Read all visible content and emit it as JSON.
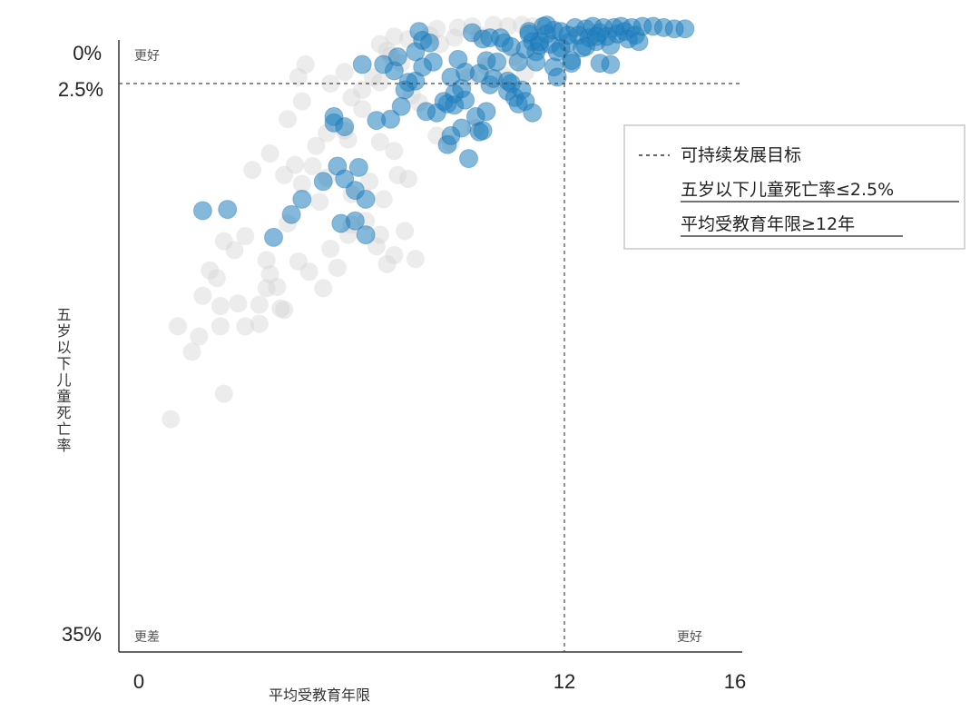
{
  "chart_data": {
    "type": "scatter",
    "title": "",
    "xlabel": "平均受教育年限",
    "ylabel": "五岁以下儿童死亡率",
    "xlim": [
      0,
      16
    ],
    "ylim_label_top": "0%",
    "ylim_label_bottom": "35%",
    "x_ticks": [
      "0",
      "12",
      "16"
    ],
    "y_ticks": [
      "0%",
      "2.5%",
      "35%"
    ],
    "corner_labels": {
      "top_left": "更好",
      "bottom_left": "更差",
      "bottom_right": "更好"
    },
    "legend": {
      "line_label": "可持续发展目标",
      "line_style": "dashed",
      "item1": "五岁以下儿童死亡率≤2.5%",
      "item2": "平均受教育年限≥12年"
    },
    "reference_lines": {
      "x": 12,
      "y_percent": 2.5
    },
    "colors": {
      "highlight": "#1f7fc0",
      "other": "#d4d4d4",
      "axis": "#333333"
    },
    "series": [
      {
        "name": "",
        "color": "#1f7fc0",
        "points": [
          [
            1.8,
            12.5
          ],
          [
            2.5,
            12.4
          ],
          [
            3.8,
            14.6
          ],
          [
            4.3,
            12.8
          ],
          [
            4.6,
            11.6
          ],
          [
            5.2,
            10.2
          ],
          [
            5.6,
            9.0
          ],
          [
            5.8,
            10.0
          ],
          [
            6.1,
            10.9
          ],
          [
            6.2,
            9.1
          ],
          [
            5.7,
            13.5
          ],
          [
            6.1,
            13.3
          ],
          [
            6.4,
            14.4
          ],
          [
            6.4,
            11.6
          ],
          [
            5.5,
            5.1
          ],
          [
            5.5,
            5.6
          ],
          [
            5.8,
            5.9
          ],
          [
            6.3,
            1.0
          ],
          [
            6.7,
            5.4
          ],
          [
            6.9,
            1.0
          ],
          [
            7.1,
            5.3
          ],
          [
            7.2,
            1.5
          ],
          [
            7.4,
            4.3
          ],
          [
            7.8,
            0.0
          ],
          [
            7.8,
            2.3
          ],
          [
            7.3,
            0.4
          ],
          [
            7.6,
            2.4
          ],
          [
            7.5,
            3.0
          ],
          [
            7.9,
            -1.6
          ],
          [
            8.0,
            -0.9
          ],
          [
            8.0,
            1.2
          ],
          [
            8.2,
            -0.7
          ],
          [
            8.3,
            0.8
          ],
          [
            8.4,
            4.8
          ],
          [
            8.1,
            4.7
          ],
          [
            8.8,
            2.0
          ],
          [
            8.6,
            3.9
          ],
          [
            8.7,
            4.1
          ],
          [
            8.7,
            7.3
          ],
          [
            8.9,
            3.3
          ],
          [
            8.9,
            4.2
          ],
          [
            9.2,
            1.6
          ],
          [
            9.1,
            6.0
          ],
          [
            8.8,
            6.6
          ],
          [
            9.2,
            3.8
          ],
          [
            9.0,
            0.6
          ],
          [
            9.1,
            2.9
          ],
          [
            9.7,
            -1.0
          ],
          [
            9.5,
            5.1
          ],
          [
            9.8,
            4.7
          ],
          [
            9.6,
            6.3
          ],
          [
            9.3,
            8.4
          ],
          [
            9.7,
            6.2
          ],
          [
            9.4,
            -1.5
          ],
          [
            9.6,
            1.7
          ],
          [
            9.8,
            0.7
          ],
          [
            9.9,
            -1.1
          ],
          [
            9.9,
            2.6
          ],
          [
            10.0,
            2.1
          ],
          [
            10.1,
            0.8
          ],
          [
            10.2,
            -1.1
          ],
          [
            10.3,
            -0.7
          ],
          [
            10.4,
            2.3
          ],
          [
            10.4,
            3.1
          ],
          [
            10.5,
            2.5
          ],
          [
            10.6,
            3.6
          ],
          [
            10.7,
            4.1
          ],
          [
            10.5,
            -0.4
          ],
          [
            10.7,
            0.8
          ],
          [
            10.8,
            3.0
          ],
          [
            10.9,
            3.9
          ],
          [
            11.0,
            -1.4
          ],
          [
            11.1,
            -0.8
          ],
          [
            11.2,
            0.0
          ],
          [
            11.2,
            0.8
          ],
          [
            11.3,
            -0.5
          ],
          [
            11.4,
            -2.0
          ],
          [
            11.5,
            -1.4
          ],
          [
            11.6,
            -0.6
          ],
          [
            11.7,
            -1.7
          ],
          [
            11.7,
            1.2
          ],
          [
            11.8,
            2.0
          ],
          [
            11.9,
            -1.6
          ],
          [
            12.1,
            -0.7
          ],
          [
            12.2,
            0.7
          ],
          [
            12.3,
            -1.9
          ],
          [
            12.4,
            -1.3
          ],
          [
            12.5,
            -0.3
          ],
          [
            12.6,
            -1.8
          ],
          [
            12.7,
            -1.1
          ],
          [
            12.8,
            -2.0
          ],
          [
            12.9,
            -0.8
          ],
          [
            13.0,
            -1.5
          ],
          [
            13.1,
            -1.9
          ],
          [
            13.2,
            -1.2
          ],
          [
            13.3,
            -0.5
          ],
          [
            13.4,
            -1.9
          ],
          [
            13.5,
            -1.4
          ],
          [
            13.6,
            -2.0
          ],
          [
            13.7,
            -1.6
          ],
          [
            13.8,
            -1.0
          ],
          [
            13.9,
            -1.9
          ],
          [
            14.0,
            -1.3
          ],
          [
            14.1,
            -0.8
          ],
          [
            14.2,
            -2.0
          ],
          [
            14.5,
            -2.0
          ],
          [
            14.8,
            -1.9
          ],
          [
            15.1,
            -1.8
          ],
          [
            15.4,
            -1.8
          ],
          [
            12.2,
            0.9
          ],
          [
            13.3,
            1.0
          ],
          [
            12.9,
            -1.2
          ],
          [
            11.3,
            -0.8
          ],
          [
            11.9,
            -0.3
          ],
          [
            10.9,
            -0.2
          ],
          [
            11.1,
            4.8
          ],
          [
            12.6,
            -0.4
          ],
          [
            12.1,
            -1.3
          ],
          [
            11.5,
            -2.1
          ],
          [
            11.0,
            -1.6
          ],
          [
            13.0,
            0.9
          ],
          [
            11.8,
            0.0
          ]
        ]
      },
      {
        "name": "",
        "color": "#d4d4d4",
        "points": [
          [
            0.9,
            28.9
          ],
          [
            1.1,
            21.6
          ],
          [
            1.5,
            23.6
          ],
          [
            1.7,
            22.4
          ],
          [
            2.3,
            21.6
          ],
          [
            2.4,
            26.9
          ],
          [
            2.3,
            20.0
          ],
          [
            1.8,
            19.2
          ],
          [
            2.0,
            17.2
          ],
          [
            2.2,
            17.8
          ],
          [
            2.8,
            19.8
          ],
          [
            3.0,
            21.6
          ],
          [
            3.4,
            21.4
          ],
          [
            3.6,
            18.6
          ],
          [
            4.1,
            20.3
          ],
          [
            3.9,
            18.5
          ],
          [
            3.4,
            19.9
          ],
          [
            3.7,
            17.5
          ],
          [
            4.0,
            20.2
          ],
          [
            2.4,
            14.9
          ],
          [
            3.0,
            14.5
          ],
          [
            2.7,
            15.6
          ],
          [
            3.6,
            16.4
          ],
          [
            4.2,
            13.5
          ],
          [
            4.5,
            16.5
          ],
          [
            4.8,
            17.3
          ],
          [
            5.6,
            17.0
          ],
          [
            5.4,
            15.5
          ],
          [
            5.9,
            14.4
          ],
          [
            6.4,
            13.3
          ],
          [
            6.0,
            13.6
          ],
          [
            6.8,
            14.4
          ],
          [
            6.7,
            15.3
          ],
          [
            7.0,
            16.7
          ],
          [
            7.2,
            16.0
          ],
          [
            7.5,
            14.1
          ],
          [
            7.8,
            16.3
          ],
          [
            3.2,
            9.3
          ],
          [
            3.7,
            8.0
          ],
          [
            4.1,
            9.7
          ],
          [
            4.6,
            10.4
          ],
          [
            5.1,
            11.8
          ],
          [
            5.3,
            9.9
          ],
          [
            6.0,
            11.2
          ],
          [
            6.5,
            10.2
          ],
          [
            6.9,
            11.6
          ],
          [
            7.3,
            9.7
          ],
          [
            7.6,
            10.0
          ],
          [
            7.2,
            7.8
          ],
          [
            6.8,
            7.1
          ],
          [
            5.9,
            6.9
          ],
          [
            5.3,
            6.4
          ],
          [
            4.4,
            8.9
          ],
          [
            5.0,
            7.4
          ],
          [
            4.9,
            9.0
          ],
          [
            4.2,
            5.3
          ],
          [
            4.6,
            3.9
          ],
          [
            4.5,
            2.0
          ],
          [
            4.7,
            1.0
          ],
          [
            5.4,
            2.5
          ],
          [
            5.8,
            1.6
          ],
          [
            6.0,
            3.6
          ],
          [
            6.3,
            3.0
          ],
          [
            6.6,
            2.0
          ],
          [
            6.8,
            2.4
          ],
          [
            7.1,
            0.3
          ],
          [
            7.4,
            0.9
          ],
          [
            7.0,
            -0.1
          ],
          [
            7.6,
            -1.0
          ],
          [
            8.2,
            -1.3
          ],
          [
            8.5,
            -0.6
          ],
          [
            8.4,
            -1.8
          ],
          [
            9.0,
            -1.9
          ],
          [
            8.9,
            -1.1
          ],
          [
            9.4,
            -2.0
          ],
          [
            9.6,
            -1.3
          ],
          [
            10.0,
            -2.1
          ],
          [
            6.8,
            -0.6
          ],
          [
            7.2,
            -1.2
          ],
          [
            9.3,
            2.0
          ],
          [
            9.8,
            1.1
          ],
          [
            10.3,
            1.9
          ],
          [
            10.6,
            0.4
          ],
          [
            8.4,
            6.6
          ],
          [
            8.8,
            7.2
          ],
          [
            9.5,
            6.0
          ],
          [
            7.9,
            4.0
          ],
          [
            7.7,
            3.4
          ],
          [
            6.3,
            4.5
          ],
          [
            5.8,
            6.2
          ],
          [
            10.9,
            1.6
          ],
          [
            11.1,
            -2.0
          ],
          [
            10.4,
            -2.0
          ],
          [
            10.8,
            -2.1
          ],
          [
            5.2,
            18.6
          ]
        ]
      }
    ]
  }
}
